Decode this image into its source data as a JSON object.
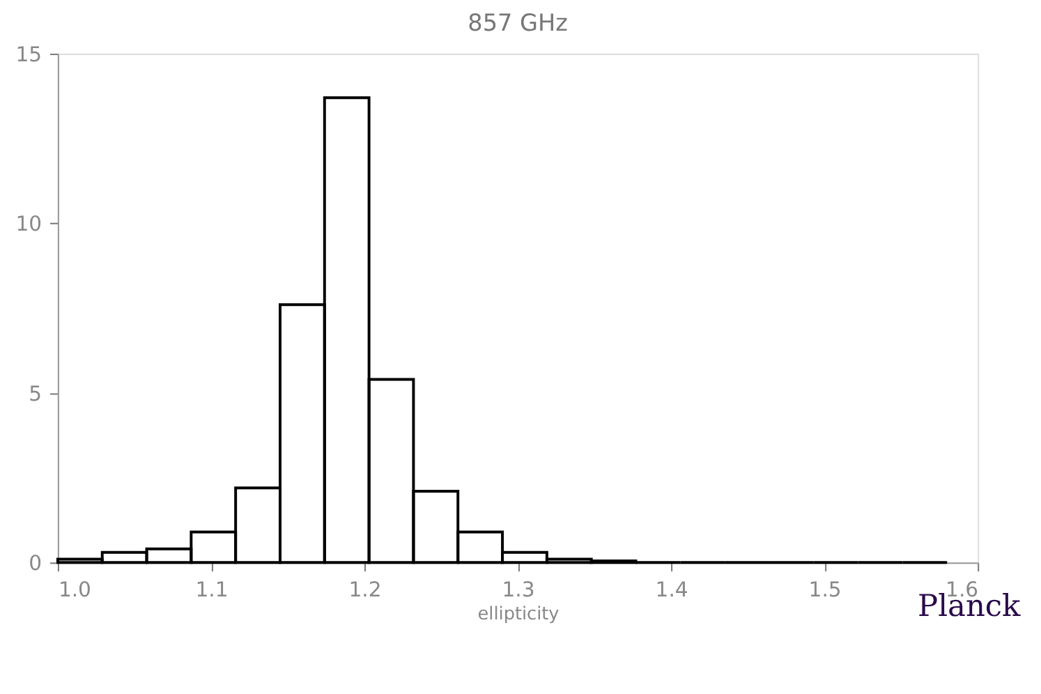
{
  "chart_data": {
    "type": "histogram",
    "title": "857 GHz",
    "xlabel": "ellipticity",
    "bins": [
      1.0,
      1.029,
      1.058,
      1.087,
      1.116,
      1.145,
      1.174,
      1.203,
      1.232,
      1.261,
      1.29,
      1.319,
      1.348,
      1.377,
      1.406,
      1.435,
      1.464,
      1.493,
      1.522,
      1.551,
      1.58
    ],
    "values": [
      0.1,
      0.3,
      0.4,
      0.9,
      2.2,
      7.6,
      13.7,
      5.4,
      2.1,
      0.9,
      0.3,
      0.1,
      0.05,
      0,
      0,
      0,
      0,
      0,
      0,
      0
    ],
    "color": "#000000",
    "xlim": [
      1.0,
      1.6
    ],
    "xticks": [
      {
        "value": 1.0,
        "label": "1.0"
      },
      1.1,
      1.2,
      1.3,
      1.4,
      1.5,
      1.6
    ],
    "ylim": [
      0,
      15
    ],
    "yticks": [
      0,
      5,
      10,
      15
    ],
    "grid": false,
    "annotations": [
      "Planck"
    ]
  }
}
